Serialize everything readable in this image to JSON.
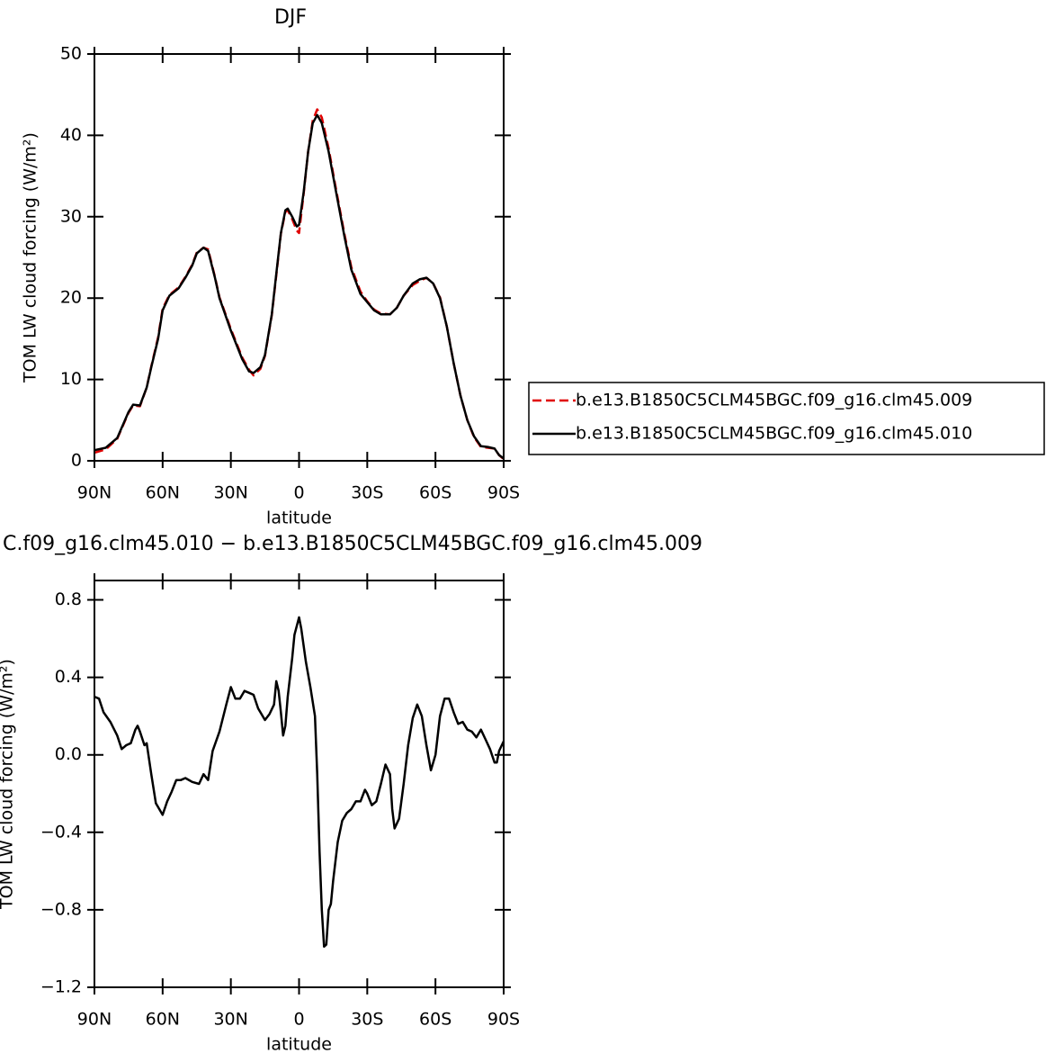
{
  "chart_data": [
    {
      "type": "line",
      "title": "DJF",
      "xlabel": "latitude",
      "ylabel": "TOM LW cloud forcing (W/m²)",
      "x": [
        90,
        85,
        80,
        75,
        73,
        70,
        67,
        65,
        62,
        60,
        57,
        53,
        50,
        47,
        45,
        42,
        40,
        37,
        35,
        30,
        25,
        22,
        20,
        17,
        15,
        12,
        10,
        8,
        6,
        5,
        3,
        1,
        0,
        -2,
        -4,
        -6,
        -8,
        -10,
        -13,
        -16,
        -20,
        -23,
        -27,
        -30,
        -33,
        -36,
        -40,
        -43,
        -46,
        -50,
        -53,
        -56,
        -59,
        -62,
        -65,
        -68,
        -71,
        -74,
        -77,
        -80,
        -83,
        -86,
        -88,
        -90
      ],
      "series": [
        {
          "name": "b.e13.B1850C5CLM45BGC.f09_g16.clm45.009",
          "color": "#e00000",
          "dash": true,
          "values": [
            1.0,
            1.4,
            2.7,
            5.9,
            6.8,
            6.7,
            9,
            11.6,
            15.2,
            18.7,
            20.4,
            21.3,
            22.6,
            24.1,
            25.6,
            26.2,
            26.0,
            22.6,
            20.1,
            16.2,
            12.7,
            11.2,
            10.5,
            11.3,
            12.9,
            17.9,
            22.8,
            27.9,
            30.6,
            30.8,
            29.7,
            28.3,
            28.0,
            32.8,
            38.0,
            41.8,
            43.2,
            42.2,
            38.4,
            33.8,
            27.8,
            23.8,
            20.8,
            19.6,
            18.6,
            18.1,
            18.0,
            18.8,
            20.3,
            21.6,
            22.1,
            22.5,
            21.8,
            20.1,
            16.5,
            12.0,
            8.0,
            5.0,
            2.9,
            1.7,
            1.6,
            1.5,
            0.7,
            0.2
          ]
        },
        {
          "name": "b.e13.B1850C5CLM45BGC.f09_g16.clm45.010",
          "color": "#000000",
          "dash": false,
          "values": [
            1.3,
            1.6,
            2.8,
            6.0,
            6.9,
            6.8,
            9,
            11.5,
            15,
            18.5,
            20.3,
            21.2,
            22.5,
            24,
            25.5,
            26.2,
            25.8,
            22.5,
            20,
            16,
            12.5,
            11,
            10.8,
            11.5,
            13,
            18,
            23,
            28,
            30.8,
            31,
            30,
            28.8,
            29,
            33,
            38,
            41.5,
            42.5,
            41.5,
            38,
            33.5,
            27.5,
            23.5,
            20.5,
            19.5,
            18.5,
            18,
            18,
            18.8,
            20.3,
            21.8,
            22.3,
            22.5,
            21.8,
            20,
            16.5,
            12,
            8,
            5,
            3,
            1.8,
            1.7,
            1.5,
            0.7,
            0.3
          ]
        }
      ],
      "xlim": [
        90,
        -90
      ],
      "xticks": [
        {
          "value": 90,
          "label": "90N"
        },
        {
          "value": 60,
          "label": "60N"
        },
        {
          "value": 30,
          "label": "30N"
        },
        0,
        {
          "value": -30,
          "label": "30S"
        },
        {
          "value": -60,
          "label": "60S"
        },
        {
          "value": -90,
          "label": "90S"
        }
      ],
      "ylim": [
        0,
        50
      ],
      "yticks": [
        0,
        10,
        20,
        30,
        40,
        50
      ],
      "legend": "right"
    },
    {
      "type": "line",
      "title": "C.f09_g16.clm45.010 − b.e13.B1850C5CLM45BGC.f09_g16.clm45.009",
      "xlabel": "latitude",
      "ylabel": "TOM LW cloud forcing (W/m²)",
      "x": [
        90,
        88,
        86,
        83,
        80,
        78,
        76,
        74,
        72,
        71,
        70,
        68,
        67,
        65,
        63,
        62,
        60,
        58,
        56,
        54,
        52,
        50,
        47,
        44,
        42,
        40,
        38,
        35,
        32,
        30,
        28,
        26,
        24,
        22,
        20,
        18,
        15,
        13,
        11,
        10,
        9,
        8,
        7,
        6,
        5,
        4,
        3,
        2,
        0,
        -1,
        -3,
        -5,
        -7,
        -8,
        -9,
        -10,
        -11,
        -12,
        -13,
        -14,
        -15,
        -17,
        -19,
        -21,
        -23,
        -25,
        -27,
        -29,
        -30,
        -32,
        -34,
        -36,
        -38,
        -40,
        -41,
        -42,
        -44,
        -46,
        -48,
        -50,
        -52,
        -54,
        -56,
        -58,
        -60,
        -62,
        -64,
        -66,
        -68,
        -70,
        -72,
        -74,
        -76,
        -78,
        -80,
        -82,
        -84,
        -86,
        -87,
        -88,
        -90
      ],
      "color": "#000000",
      "values": [
        0.3,
        0.29,
        0.22,
        0.17,
        0.1,
        0.03,
        0.05,
        0.06,
        0.13,
        0.15,
        0.12,
        0.05,
        0.06,
        -0.1,
        -0.25,
        -0.27,
        -0.31,
        -0.24,
        -0.19,
        -0.13,
        -0.13,
        -0.12,
        -0.14,
        -0.15,
        -0.1,
        -0.13,
        0.02,
        0.12,
        0.26,
        0.35,
        0.29,
        0.29,
        0.33,
        0.32,
        0.31,
        0.24,
        0.18,
        0.21,
        0.26,
        0.38,
        0.33,
        0.22,
        0.1,
        0.15,
        0.3,
        0.4,
        0.5,
        0.62,
        0.71,
        0.65,
        0.48,
        0.35,
        0.2,
        -0.1,
        -0.5,
        -0.8,
        -0.99,
        -0.98,
        -0.8,
        -0.77,
        -0.65,
        -0.45,
        -0.34,
        -0.3,
        -0.28,
        -0.24,
        -0.24,
        -0.18,
        -0.2,
        -0.26,
        -0.24,
        -0.15,
        -0.05,
        -0.1,
        -0.28,
        -0.38,
        -0.33,
        -0.15,
        0.05,
        0.19,
        0.26,
        0.2,
        0.05,
        -0.08,
        0.0,
        0.2,
        0.29,
        0.29,
        0.22,
        0.16,
        0.17,
        0.13,
        0.12,
        0.09,
        0.13,
        0.08,
        0.03,
        -0.04,
        -0.04,
        0.02,
        0.07
      ],
      "xlim": [
        90,
        -90
      ],
      "xticks": [
        {
          "value": 90,
          "label": "90N"
        },
        {
          "value": 60,
          "label": "60N"
        },
        {
          "value": 30,
          "label": "30N"
        },
        0,
        {
          "value": -30,
          "label": "30S"
        },
        {
          "value": -60,
          "label": "60S"
        },
        {
          "value": -90,
          "label": "90S"
        }
      ],
      "ylim": [
        -1.2,
        0.9
      ],
      "yticks": [
        {
          "value": -1.2,
          "label": "−1.2"
        },
        {
          "value": -0.8,
          "label": "−0.8"
        },
        {
          "value": -0.4,
          "label": "−0.4"
        },
        {
          "value": 0,
          "label": "0.0"
        },
        0.4,
        0.8
      ]
    }
  ]
}
